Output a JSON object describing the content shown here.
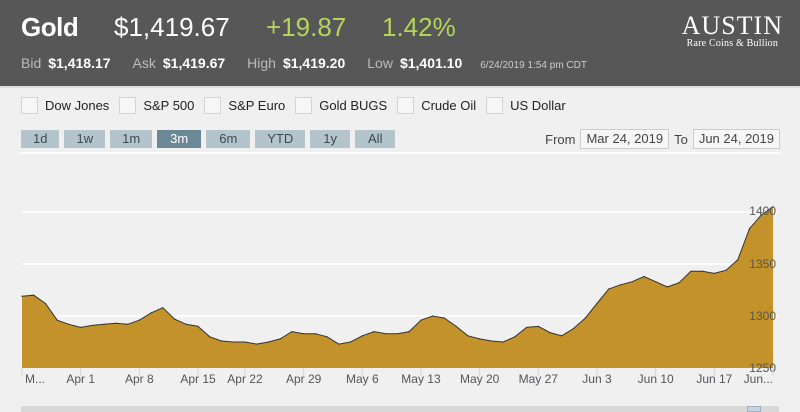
{
  "header": {
    "title": "Gold",
    "price": "$1,419.67",
    "change": "+19.87",
    "change_pct": "1.42%",
    "bid_label": "Bid",
    "bid": "$1,418.17",
    "ask_label": "Ask",
    "ask": "$1,419.67",
    "high_label": "High",
    "high": "$1,419.20",
    "low_label": "Low",
    "low": "$1,401.10",
    "timestamp": "6/24/2019 1:54 pm CDT",
    "logo": {
      "name": "AUSTIN",
      "tagline": "Rare Coins & Bullion"
    }
  },
  "compare": [
    {
      "label": "Dow Jones",
      "checked": false
    },
    {
      "label": "S&P 500",
      "checked": false
    },
    {
      "label": "S&P Euro",
      "checked": false
    },
    {
      "label": "Gold BUGS",
      "checked": false
    },
    {
      "label": "Crude Oil",
      "checked": false
    },
    {
      "label": "US Dollar",
      "checked": false
    }
  ],
  "ranges": [
    {
      "label": "1d"
    },
    {
      "label": "1w"
    },
    {
      "label": "1m"
    },
    {
      "label": "3m",
      "active": true
    },
    {
      "label": "6m"
    },
    {
      "label": "YTD"
    },
    {
      "label": "1y"
    },
    {
      "label": "All"
    }
  ],
  "date_range": {
    "from_label": "From",
    "from": "Mar 24, 2019",
    "to_label": "To",
    "to": "Jun 24, 2019"
  },
  "colors": {
    "header_bg": "#575757",
    "positive": "#b5d55a",
    "area_fill": "#c4922a",
    "active_range": "#6c8896"
  },
  "chart_data": {
    "type": "area",
    "x": [
      "2019-03-25",
      "2019-03-26",
      "2019-03-27",
      "2019-03-28",
      "2019-03-29",
      "2019-04-01",
      "2019-04-02",
      "2019-04-03",
      "2019-04-04",
      "2019-04-05",
      "2019-04-08",
      "2019-04-09",
      "2019-04-10",
      "2019-04-11",
      "2019-04-12",
      "2019-04-15",
      "2019-04-16",
      "2019-04-17",
      "2019-04-18",
      "2019-04-22",
      "2019-04-23",
      "2019-04-24",
      "2019-04-25",
      "2019-04-26",
      "2019-04-29",
      "2019-04-30",
      "2019-05-01",
      "2019-05-02",
      "2019-05-03",
      "2019-05-06",
      "2019-05-07",
      "2019-05-08",
      "2019-05-09",
      "2019-05-10",
      "2019-05-13",
      "2019-05-14",
      "2019-05-15",
      "2019-05-16",
      "2019-05-17",
      "2019-05-20",
      "2019-05-21",
      "2019-05-22",
      "2019-05-23",
      "2019-05-24",
      "2019-05-27",
      "2019-05-28",
      "2019-05-29",
      "2019-05-30",
      "2019-05-31",
      "2019-06-03",
      "2019-06-04",
      "2019-06-05",
      "2019-06-06",
      "2019-06-07",
      "2019-06-10",
      "2019-06-11",
      "2019-06-12",
      "2019-06-13",
      "2019-06-14",
      "2019-06-17",
      "2019-06-18",
      "2019-06-19",
      "2019-06-20",
      "2019-06-21",
      "2019-06-24"
    ],
    "values": [
      1319,
      1320,
      1312,
      1296,
      1292,
      1289,
      1291,
      1292,
      1293,
      1292,
      1296,
      1303,
      1308,
      1297,
      1292,
      1290,
      1280,
      1276,
      1275,
      1275,
      1273,
      1275,
      1278,
      1285,
      1283,
      1283,
      1280,
      1273,
      1275,
      1281,
      1285,
      1283,
      1283,
      1285,
      1296,
      1300,
      1298,
      1290,
      1281,
      1278,
      1276,
      1275,
      1280,
      1289,
      1290,
      1284,
      1281,
      1288,
      1298,
      1312,
      1326,
      1330,
      1333,
      1338,
      1333,
      1328,
      1332,
      1343,
      1343,
      1341,
      1344,
      1354,
      1384,
      1397,
      1405
    ],
    "ylim": [
      1250,
      1410
    ],
    "y_ticks": [
      "1250",
      "1300",
      "1350",
      "1400"
    ],
    "x_ticks": [
      {
        "label": "M...",
        "date": "2019-03-25"
      },
      {
        "label": "Apr 1",
        "date": "2019-04-01"
      },
      {
        "label": "Apr 8",
        "date": "2019-04-08"
      },
      {
        "label": "Apr 15",
        "date": "2019-04-15"
      },
      {
        "label": "Apr 22",
        "date": "2019-04-22"
      },
      {
        "label": "Apr 29",
        "date": "2019-04-29"
      },
      {
        "label": "May 6",
        "date": "2019-05-06"
      },
      {
        "label": "May 13",
        "date": "2019-05-13"
      },
      {
        "label": "May 20",
        "date": "2019-05-20"
      },
      {
        "label": "May 27",
        "date": "2019-05-27"
      },
      {
        "label": "Jun 3",
        "date": "2019-06-03"
      },
      {
        "label": "Jun 10",
        "date": "2019-06-10"
      },
      {
        "label": "Jun 17",
        "date": "2019-06-17"
      },
      {
        "label": "Jun...",
        "date": "2019-06-24"
      }
    ],
    "grid": true,
    "legend": "none"
  }
}
